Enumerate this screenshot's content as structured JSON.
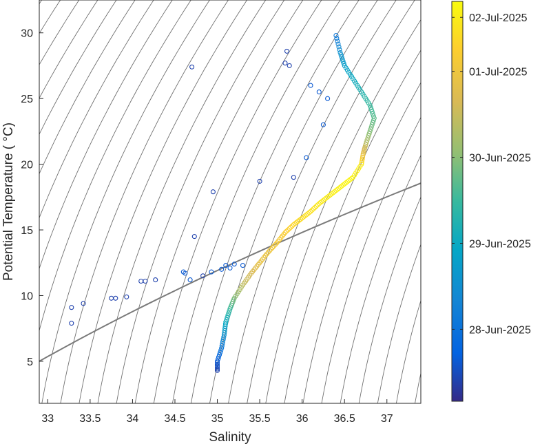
{
  "chart_data": {
    "type": "scatter",
    "xlabel": "Salinity",
    "ylabel": "Potential Temperature ( °C)",
    "xlim": [
      32.9,
      37.4
    ],
    "ylim": [
      1.8,
      32.5
    ],
    "x_ticks": [
      "33",
      "33.5",
      "34",
      "34.5",
      "35",
      "35.5",
      "36",
      "36.5",
      "37"
    ],
    "y_ticks": [
      "5",
      "10",
      "15",
      "20",
      "25",
      "30"
    ],
    "colorbar": {
      "colormap": "parula",
      "tick_labels": [
        "28-Jun-2025",
        "29-Jun-2025",
        "30-Jun-2025",
        "01-Jul-2025",
        "02-Jul-2025"
      ],
      "tick_fractions": [
        0.18,
        0.395,
        0.61,
        0.825,
        0.96
      ]
    },
    "density_contours": {
      "color": "#707070",
      "count": 36,
      "highlight_color": "#7a7a7a"
    },
    "marker": "open-circle",
    "series": [
      {
        "description_key": "main_profile",
        "x": [
          35.0,
          35.0,
          35.05,
          35.08,
          35.1,
          35.15,
          35.2,
          35.3,
          35.4,
          35.5,
          35.6,
          35.7,
          35.8,
          35.9,
          36.0,
          36.1,
          36.2,
          36.3,
          36.4,
          36.5,
          36.6,
          36.7,
          36.72,
          36.75,
          36.8,
          36.85,
          36.8,
          36.7,
          36.6,
          36.5,
          36.45,
          36.4
        ],
        "y": [
          4.3,
          5.0,
          6.0,
          7.0,
          8.0,
          9.0,
          9.8,
          10.8,
          11.7,
          12.5,
          13.3,
          14.0,
          14.8,
          15.4,
          15.9,
          16.4,
          17.0,
          17.5,
          18.0,
          18.5,
          19.0,
          20.0,
          20.8,
          21.5,
          22.5,
          23.5,
          24.5,
          25.5,
          26.5,
          27.5,
          28.5,
          29.8
        ],
        "t": [
          0.05,
          0.1,
          0.2,
          0.3,
          0.4,
          0.5,
          0.6,
          0.7,
          0.75,
          0.8,
          0.82,
          0.85,
          0.87,
          0.9,
          0.92,
          0.93,
          0.95,
          0.96,
          0.97,
          0.98,
          0.98,
          0.96,
          0.8,
          0.7,
          0.6,
          0.55,
          0.5,
          0.45,
          0.4,
          0.35,
          0.3,
          0.2
        ]
      },
      {
        "description_key": "scattered_points",
        "x": [
          33.28,
          33.28,
          33.42,
          33.75,
          33.8,
          33.93,
          34.1,
          34.15,
          34.27,
          34.6,
          34.62,
          34.68,
          34.7,
          34.73,
          34.83,
          34.93,
          34.95,
          35.05,
          35.1,
          35.15,
          35.2,
          35.3,
          35.5,
          35.8,
          35.82,
          35.85,
          35.9,
          36.2,
          36.25,
          36.3,
          36.05,
          36.1
        ],
        "y": [
          9.1,
          7.9,
          9.4,
          9.8,
          9.8,
          9.9,
          11.1,
          11.1,
          11.2,
          11.8,
          11.7,
          11.2,
          27.4,
          14.5,
          11.5,
          11.8,
          17.9,
          12.0,
          12.3,
          12.1,
          12.4,
          12.3,
          18.7,
          27.7,
          28.6,
          27.5,
          19.0,
          25.5,
          23.0,
          25.0,
          20.5,
          26.0
        ],
        "t": [
          0.05,
          0.05,
          0.05,
          0.05,
          0.05,
          0.05,
          0.05,
          0.05,
          0.05,
          0.1,
          0.1,
          0.1,
          0.05,
          0.05,
          0.05,
          0.1,
          0.05,
          0.1,
          0.1,
          0.1,
          0.1,
          0.1,
          0.05,
          0.05,
          0.05,
          0.05,
          0.05,
          0.1,
          0.1,
          0.1,
          0.1,
          0.1
        ]
      }
    ]
  }
}
